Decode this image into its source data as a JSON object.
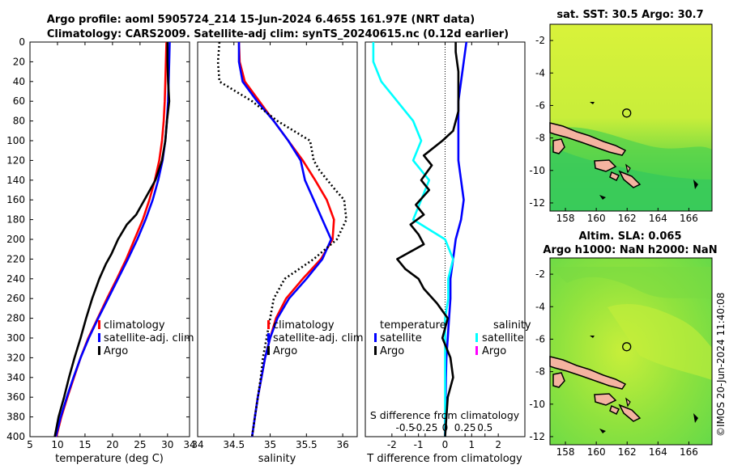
{
  "header": {
    "line1": "Argo profile: aoml 5905724_214 15-Jun-2024 6.465S 161.97E (NRT data)",
    "line2": "Climatology: CARS2009. Satellite-adj clim: synTS_20240615.nc (0.12d earlier)"
  },
  "side_label": "©IMOS 20-Jun-2024 11:40:08",
  "colors": {
    "climatology": "#ff0000",
    "satellite": "#0000ff",
    "argo": "#000000",
    "sal_sat": "#00ffff",
    "magenta": "#ff00ff",
    "land": "#f4b3a0"
  },
  "chart_data": [
    {
      "id": "temperature",
      "type": "line",
      "xlabel": "temperature (deg C)",
      "xlim": [
        5,
        34
      ],
      "ylim": [
        0,
        400
      ],
      "xticks": [
        "5",
        "10",
        "15",
        "20",
        "25",
        "30",
        "34"
      ],
      "xtick_values": [
        5,
        10,
        15,
        20,
        25,
        30,
        34
      ],
      "yticks": [
        "0",
        "20",
        "40",
        "60",
        "80",
        "100",
        "120",
        "140",
        "160",
        "180",
        "200",
        "220",
        "240",
        "260",
        "280",
        "300",
        "320",
        "340",
        "360",
        "380",
        "400"
      ],
      "ytick_values": [
        0,
        20,
        40,
        60,
        80,
        100,
        120,
        140,
        160,
        180,
        200,
        220,
        240,
        260,
        280,
        300,
        320,
        340,
        360,
        380,
        400
      ],
      "legend": [
        "climatology",
        "satellite-adj. clim",
        "Argo"
      ],
      "series": [
        {
          "name": "climatology",
          "color": "#ff0000",
          "points": [
            [
              29.8,
              0
            ],
            [
              29.7,
              20
            ],
            [
              29.6,
              40
            ],
            [
              29.5,
              60
            ],
            [
              29.3,
              80
            ],
            [
              29.0,
              100
            ],
            [
              28.5,
              120
            ],
            [
              27.7,
              140
            ],
            [
              26.7,
              160
            ],
            [
              25.5,
              180
            ],
            [
              24.0,
              200
            ],
            [
              22.5,
              220
            ],
            [
              20.8,
              240
            ],
            [
              19.0,
              260
            ],
            [
              17.3,
              280
            ],
            [
              15.6,
              300
            ],
            [
              14.2,
              320
            ],
            [
              13.0,
              340
            ],
            [
              11.8,
              360
            ],
            [
              10.7,
              380
            ],
            [
              9.8,
              400
            ]
          ]
        },
        {
          "name": "satellite-adj. clim",
          "color": "#0000ff",
          "points": [
            [
              30.4,
              0
            ],
            [
              30.3,
              20
            ],
            [
              30.2,
              40
            ],
            [
              30.1,
              60
            ],
            [
              29.9,
              80
            ],
            [
              29.6,
              100
            ],
            [
              29.1,
              120
            ],
            [
              28.3,
              140
            ],
            [
              27.3,
              160
            ],
            [
              26.0,
              180
            ],
            [
              24.5,
              200
            ],
            [
              22.8,
              220
            ],
            [
              21.0,
              240
            ],
            [
              19.2,
              260
            ],
            [
              17.4,
              280
            ],
            [
              15.7,
              300
            ],
            [
              14.2,
              320
            ],
            [
              12.9,
              340
            ],
            [
              11.7,
              360
            ],
            [
              10.6,
              380
            ],
            [
              9.7,
              400
            ]
          ]
        },
        {
          "name": "Argo",
          "color": "#000000",
          "points": [
            [
              30.0,
              0
            ],
            [
              30.0,
              20
            ],
            [
              30.1,
              40
            ],
            [
              30.3,
              60
            ],
            [
              29.9,
              80
            ],
            [
              29.6,
              100
            ],
            [
              29.0,
              120
            ],
            [
              27.8,
              140
            ],
            [
              25.8,
              160
            ],
            [
              24.3,
              175
            ],
            [
              22.6,
              185
            ],
            [
              21.0,
              200
            ],
            [
              19.8,
              215
            ],
            [
              18.8,
              225
            ],
            [
              17.6,
              240
            ],
            [
              16.3,
              260
            ],
            [
              15.2,
              280
            ],
            [
              14.2,
              300
            ],
            [
              13.1,
              320
            ],
            [
              12.1,
              340
            ],
            [
              11.2,
              360
            ],
            [
              10.2,
              380
            ],
            [
              9.5,
              400
            ]
          ]
        }
      ]
    },
    {
      "id": "salinity",
      "type": "line",
      "xlabel": "salinity",
      "xlim": [
        34,
        36.2
      ],
      "ylim": [
        0,
        400
      ],
      "xticks": [
        "34",
        "34.5",
        "35",
        "35.5",
        "36"
      ],
      "xtick_values": [
        34,
        34.5,
        35,
        35.5,
        36
      ],
      "legend": [
        "climatology",
        "satellite-adj. clim",
        "Argo"
      ],
      "series": [
        {
          "name": "climatology",
          "color": "#ff0000",
          "points": [
            [
              34.57,
              0
            ],
            [
              34.58,
              20
            ],
            [
              34.65,
              40
            ],
            [
              34.85,
              60
            ],
            [
              35.05,
              80
            ],
            [
              35.25,
              100
            ],
            [
              35.45,
              120
            ],
            [
              35.62,
              140
            ],
            [
              35.78,
              160
            ],
            [
              35.88,
              180
            ],
            [
              35.86,
              200
            ],
            [
              35.7,
              220
            ],
            [
              35.45,
              240
            ],
            [
              35.22,
              260
            ],
            [
              35.08,
              280
            ],
            [
              35.0,
              300
            ],
            [
              34.93,
              320
            ],
            [
              34.88,
              340
            ],
            [
              34.83,
              360
            ],
            [
              34.79,
              380
            ],
            [
              34.75,
              400
            ]
          ]
        },
        {
          "name": "satellite-adj. clim",
          "color": "#0000ff",
          "points": [
            [
              34.57,
              0
            ],
            [
              34.57,
              20
            ],
            [
              34.62,
              40
            ],
            [
              34.82,
              60
            ],
            [
              35.05,
              80
            ],
            [
              35.25,
              100
            ],
            [
              35.42,
              120
            ],
            [
              35.48,
              140
            ],
            [
              35.6,
              160
            ],
            [
              35.72,
              180
            ],
            [
              35.84,
              200
            ],
            [
              35.72,
              220
            ],
            [
              35.5,
              240
            ],
            [
              35.26,
              260
            ],
            [
              35.1,
              280
            ],
            [
              35.0,
              300
            ],
            [
              34.93,
              320
            ],
            [
              34.88,
              340
            ],
            [
              34.83,
              360
            ],
            [
              34.79,
              380
            ],
            [
              34.75,
              400
            ]
          ]
        },
        {
          "name": "Argo",
          "color": "#000000",
          "dashed": true,
          "points": [
            [
              34.3,
              0
            ],
            [
              34.28,
              20
            ],
            [
              34.3,
              40
            ],
            [
              34.75,
              60
            ],
            [
              35.1,
              80
            ],
            [
              35.55,
              100
            ],
            [
              35.6,
              120
            ],
            [
              35.68,
              130
            ],
            [
              35.9,
              150
            ],
            [
              36.02,
              160
            ],
            [
              36.05,
              180
            ],
            [
              35.92,
              200
            ],
            [
              35.6,
              220
            ],
            [
              35.2,
              240
            ],
            [
              35.05,
              260
            ],
            [
              35.0,
              280
            ],
            [
              34.95,
              300
            ],
            [
              34.9,
              320
            ],
            [
              34.87,
              340
            ],
            [
              34.83,
              360
            ],
            [
              34.79,
              380
            ],
            [
              34.75,
              400
            ]
          ]
        }
      ]
    },
    {
      "id": "difference",
      "type": "line",
      "xlabel": "T difference from climatology",
      "xlabel2": "S difference from climatology",
      "xlim": [
        -3,
        3
      ],
      "ylim": [
        0,
        400
      ],
      "xticks": [
        "-2",
        "-1",
        "0",
        "1",
        "2"
      ],
      "xtick_values": [
        -2,
        -1,
        0,
        1,
        2
      ],
      "xticks_s": [
        "-0.5",
        "-0.25",
        "0",
        "0.25",
        "0.5"
      ],
      "xtick_s_values": [
        -0.5,
        -0.25,
        0,
        0.25,
        0.5
      ],
      "legend_left_title": "temperature",
      "legend_left": [
        "satellite",
        "Argo"
      ],
      "legend_right_title": "salinity",
      "legend_right": [
        "satellite",
        "Argo"
      ],
      "series": [
        {
          "name": "T satellite",
          "color": "#0000ff",
          "points": [
            [
              0.8,
              0
            ],
            [
              0.7,
              20
            ],
            [
              0.6,
              40
            ],
            [
              0.5,
              60
            ],
            [
              0.5,
              80
            ],
            [
              0.5,
              100
            ],
            [
              0.5,
              120
            ],
            [
              0.6,
              140
            ],
            [
              0.7,
              160
            ],
            [
              0.6,
              180
            ],
            [
              0.4,
              200
            ],
            [
              0.3,
              220
            ],
            [
              0.2,
              240
            ],
            [
              0.2,
              260
            ],
            [
              0.15,
              280
            ],
            [
              0.1,
              300
            ],
            [
              0.05,
              320
            ],
            [
              0.03,
              340
            ],
            [
              0.02,
              360
            ],
            [
              0.0,
              380
            ],
            [
              0.0,
              400
            ]
          ]
        },
        {
          "name": "S satellite",
          "color": "#00ffff",
          "points": [
            [
              -0.45,
              0
            ],
            [
              -0.45,
              20
            ],
            [
              -0.4,
              40
            ],
            [
              -0.3,
              60
            ],
            [
              -0.2,
              80
            ],
            [
              -0.15,
              100
            ],
            [
              -0.2,
              120
            ],
            [
              -0.1,
              140
            ],
            [
              -0.15,
              160
            ],
            [
              -0.2,
              180
            ],
            [
              0.0,
              200
            ],
            [
              0.05,
              220
            ],
            [
              0.02,
              240
            ],
            [
              0.02,
              260
            ],
            [
              0.0,
              280
            ],
            [
              0.0,
              300
            ],
            [
              0.0,
              320
            ],
            [
              0.0,
              340
            ],
            [
              0.0,
              360
            ],
            [
              0.0,
              380
            ],
            [
              0.0,
              400
            ]
          ]
        },
        {
          "name": "T Argo",
          "color": "#000000",
          "points": [
            [
              0.4,
              0
            ],
            [
              0.4,
              10
            ],
            [
              0.5,
              30
            ],
            [
              0.5,
              50
            ],
            [
              0.5,
              70
            ],
            [
              0.3,
              90
            ],
            [
              -0.1,
              100
            ],
            [
              -0.8,
              115
            ],
            [
              -0.5,
              125
            ],
            [
              -0.9,
              140
            ],
            [
              -0.6,
              150
            ],
            [
              -1.1,
              165
            ],
            [
              -0.8,
              175
            ],
            [
              -1.3,
              185
            ],
            [
              -1.0,
              195
            ],
            [
              -0.8,
              205
            ],
            [
              -1.8,
              220
            ],
            [
              -1.5,
              230
            ],
            [
              -1.0,
              240
            ],
            [
              -0.8,
              250
            ],
            [
              -0.3,
              265
            ],
            [
              0.1,
              280
            ],
            [
              -0.1,
              300
            ],
            [
              0.2,
              320
            ],
            [
              0.3,
              340
            ],
            [
              0.1,
              360
            ],
            [
              0.05,
              380
            ],
            [
              0.0,
              400
            ]
          ]
        }
      ]
    },
    {
      "id": "sst_map",
      "type": "heatmap",
      "title": "sat. SST: 30.5 Argo: 30.7",
      "xticks": [
        "158",
        "160",
        "162",
        "164",
        "166"
      ],
      "yticks": [
        "-2",
        "-4",
        "-6",
        "-8",
        "-10",
        "-12"
      ],
      "xlim": [
        157,
        167.5
      ],
      "ylim": [
        -12.5,
        -1
      ],
      "argo_position": [
        161.97,
        -6.465
      ]
    },
    {
      "id": "sla_map",
      "type": "heatmap",
      "title": "Altim. SLA: 0.065",
      "subtitle": "Argo h1000: NaN h2000: NaN",
      "xticks": [
        "158",
        "160",
        "162",
        "164",
        "166"
      ],
      "yticks": [
        "-2",
        "-4",
        "-6",
        "-8",
        "-10",
        "-12"
      ],
      "xlim": [
        157,
        167.5
      ],
      "ylim": [
        -12.5,
        -1
      ],
      "argo_position": [
        161.97,
        -6.465
      ]
    }
  ]
}
